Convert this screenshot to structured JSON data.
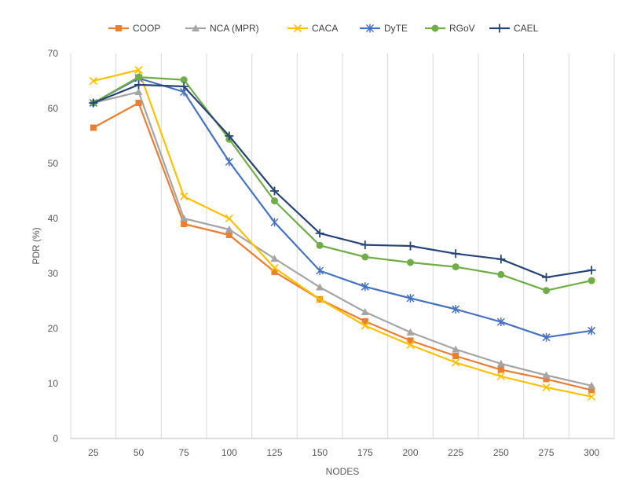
{
  "chart_data": {
    "type": "line",
    "title": "",
    "xlabel": "NODES",
    "ylabel": "PDR (%)",
    "ylim": [
      0,
      70
    ],
    "yticks": [
      0,
      10,
      20,
      30,
      40,
      50,
      60,
      70
    ],
    "categories": [
      "25",
      "50",
      "75",
      "100",
      "125",
      "150",
      "175",
      "200",
      "225",
      "250",
      "275",
      "300"
    ],
    "grid": "vertical",
    "legend_position": "top",
    "series": [
      {
        "name": "COOP",
        "color": "#ED7D31",
        "marker": "square",
        "values": [
          56.5,
          61,
          39,
          37,
          30.3,
          25.3,
          21.3,
          17.8,
          15,
          12.5,
          10.8,
          8.8
        ]
      },
      {
        "name": "NCA (MPR)",
        "color": "#A5A5A5",
        "marker": "triangle",
        "values": [
          61,
          63,
          40,
          38,
          32.7,
          27.5,
          23,
          19.3,
          16.2,
          13.6,
          11.5,
          9.6
        ]
      },
      {
        "name": "CACA",
        "color": "#FFC000",
        "marker": "x",
        "values": [
          65,
          67,
          44,
          40,
          31,
          25.3,
          20.5,
          17,
          13.8,
          11.3,
          9.3,
          7.6
        ]
      },
      {
        "name": "DyTE",
        "color": "#4472C4",
        "marker": "asterisk",
        "values": [
          61,
          65.5,
          63,
          50.3,
          39.3,
          30.5,
          27.6,
          25.5,
          23.5,
          21.2,
          18.4,
          19.6
        ]
      },
      {
        "name": "RGoV",
        "color": "#70AD47",
        "marker": "circle",
        "values": [
          61,
          65.7,
          65.2,
          54.4,
          43.2,
          35.1,
          33,
          32,
          31.2,
          29.8,
          26.9,
          28.7
        ]
      },
      {
        "name": "CAEL",
        "color": "#264478",
        "marker": "plus",
        "values": [
          61,
          64.3,
          64,
          55,
          45,
          37.3,
          35.2,
          35,
          33.6,
          32.6,
          29.3,
          30.6
        ]
      }
    ]
  }
}
